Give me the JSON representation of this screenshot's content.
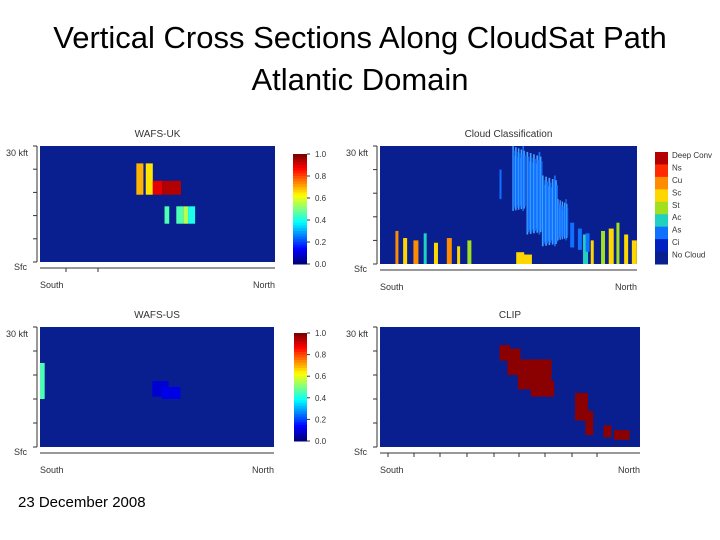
{
  "slide": {
    "title_line1": "Vertical Cross Sections Along CloudSat Path",
    "title_line2": "Atlantic Domain",
    "date": "23 December 2008"
  },
  "colors": {
    "background": "#0a1f8f",
    "axis": "#333333"
  },
  "chart_data": [
    {
      "type": "heatmap",
      "title": "WAFS-UK",
      "y_top_label": "30 kft",
      "y_bottom_label": "Sfc",
      "x_left_label": "South",
      "x_right_label": "North",
      "colorbar": {
        "ticks": [
          "1.0",
          "0.8",
          "0.6",
          "0.4",
          "0.2",
          "0.0"
        ],
        "range": [
          0,
          1
        ]
      },
      "cells": [
        {
          "x0": 0.41,
          "x1": 0.44,
          "y0": 0.58,
          "y1": 0.85,
          "value": 0.7
        },
        {
          "x0": 0.45,
          "x1": 0.48,
          "y0": 0.58,
          "y1": 0.85,
          "value": 0.65
        },
        {
          "x0": 0.48,
          "x1": 0.52,
          "y0": 0.58,
          "y1": 0.7,
          "value": 0.9
        },
        {
          "x0": 0.52,
          "x1": 0.6,
          "y0": 0.58,
          "y1": 0.7,
          "value": 0.95
        },
        {
          "x0": 0.53,
          "x1": 0.55,
          "y0": 0.33,
          "y1": 0.48,
          "value": 0.45
        },
        {
          "x0": 0.58,
          "x1": 0.61,
          "y0": 0.33,
          "y1": 0.48,
          "value": 0.45
        },
        {
          "x0": 0.61,
          "x1": 0.63,
          "y0": 0.33,
          "y1": 0.48,
          "value": 0.55
        },
        {
          "x0": 0.63,
          "x1": 0.66,
          "y0": 0.33,
          "y1": 0.48,
          "value": 0.4
        }
      ]
    },
    {
      "type": "heatmap",
      "title": "Cloud Classification",
      "y_top_label": "30 kft",
      "y_bottom_label": "Sfc",
      "x_left_label": "South",
      "x_right_label": "North",
      "legend": [
        "Deep Conv",
        "Ns",
        "Cu",
        "Sc",
        "St",
        "Ac",
        "As",
        "Ci",
        "No Cloud"
      ],
      "legend_colors": [
        "#b40000",
        "#ff2a00",
        "#ff8c00",
        "#ffd700",
        "#a0e020",
        "#20d0c0",
        "#1070ff",
        "#0020c0",
        "#0a1f8f"
      ]
    },
    {
      "type": "heatmap",
      "title": "WAFS-US",
      "y_top_label": "30 kft",
      "y_bottom_label": "Sfc",
      "x_left_label": "South",
      "x_right_label": "North",
      "colorbar": {
        "ticks": [
          "1.0",
          "0.8",
          "0.6",
          "0.4",
          "0.2",
          "0.0"
        ],
        "range": [
          0,
          1
        ]
      },
      "cells": [
        {
          "x0": 0.0,
          "x1": 0.02,
          "y0": 0.4,
          "y1": 0.7,
          "value": 0.45
        },
        {
          "x0": 0.48,
          "x1": 0.55,
          "y0": 0.42,
          "y1": 0.55,
          "value": 0.08
        },
        {
          "x0": 0.52,
          "x1": 0.6,
          "y0": 0.4,
          "y1": 0.5,
          "value": 0.1
        }
      ]
    },
    {
      "type": "heatmap",
      "title": "CLIP",
      "y_top_label": "30 kft",
      "y_bottom_label": "Sfc",
      "x_left_label": "South",
      "x_right_label": "North",
      "cells": [
        {
          "x0": 0.46,
          "x1": 0.5,
          "y0": 0.72,
          "y1": 0.85,
          "value": 1.0
        },
        {
          "x0": 0.49,
          "x1": 0.54,
          "y0": 0.6,
          "y1": 0.82,
          "value": 1.0
        },
        {
          "x0": 0.53,
          "x1": 0.66,
          "y0": 0.48,
          "y1": 0.73,
          "value": 1.0
        },
        {
          "x0": 0.58,
          "x1": 0.67,
          "y0": 0.42,
          "y1": 0.55,
          "value": 1.0
        },
        {
          "x0": 0.75,
          "x1": 0.8,
          "y0": 0.22,
          "y1": 0.45,
          "value": 1.0
        },
        {
          "x0": 0.79,
          "x1": 0.82,
          "y0": 0.1,
          "y1": 0.3,
          "value": 1.0
        },
        {
          "x0": 0.86,
          "x1": 0.89,
          "y0": 0.08,
          "y1": 0.18,
          "value": 1.0
        },
        {
          "x0": 0.9,
          "x1": 0.96,
          "y0": 0.06,
          "y1": 0.14,
          "value": 1.0
        }
      ]
    }
  ]
}
